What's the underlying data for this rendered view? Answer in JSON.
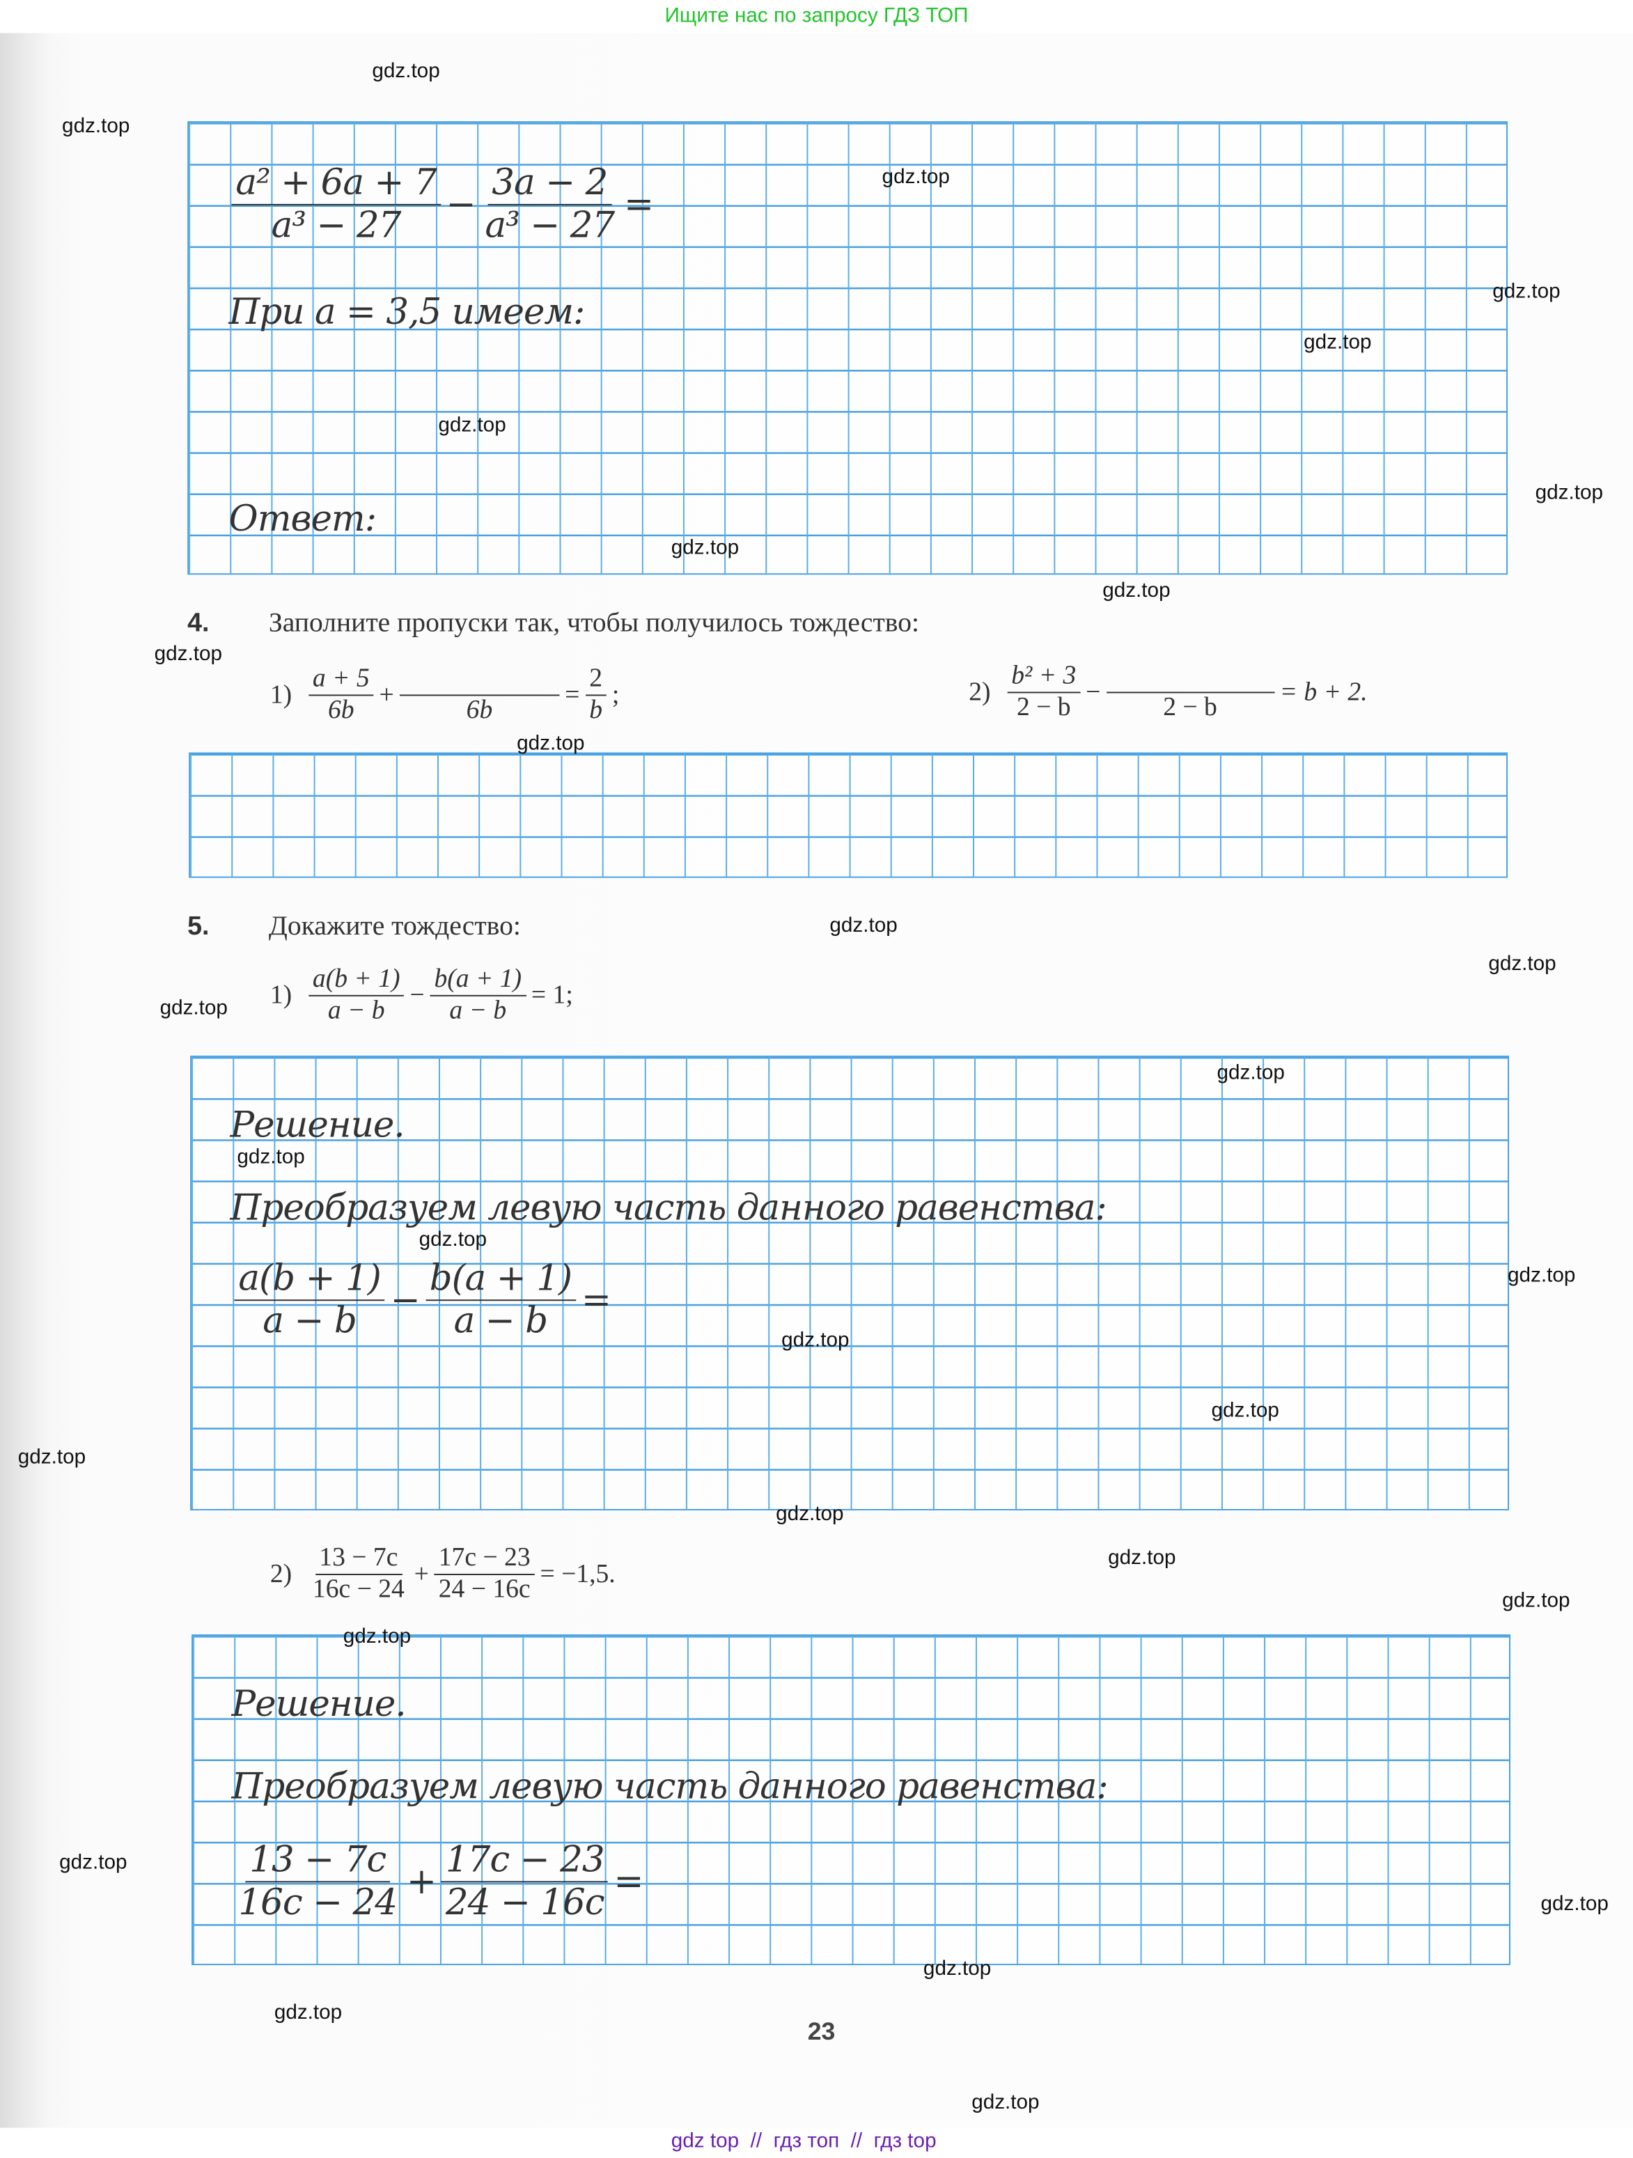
{
  "header_banner": "Ищите нас по запросу ГДЗ ТОП",
  "watermark": "gdz.top",
  "footer": "gdz top  //  гдз топ  //  гдз top",
  "colors": {
    "grid": "#49a2e0",
    "banner": "#22c42a",
    "footer": "#6b1fb0"
  },
  "task3_cont": {
    "f1": {
      "num": "a² + 6a + 7",
      "den": "a³ − 27"
    },
    "op": "−",
    "f2": {
      "num": "3a − 2",
      "den": "a³ − 27"
    },
    "eq": "=",
    "at_value": "При a = 3,5 имеем:",
    "answer_label": "Ответ:"
  },
  "task4": {
    "number": "4.",
    "title": "Заполните пропуски так, чтобы получилось тождество:",
    "item1": {
      "label": "1)",
      "f1": {
        "num": "a + 5",
        "den": "6b"
      },
      "op": "+",
      "f2": {
        "num": "",
        "den": "6b"
      },
      "eq": "=",
      "rhs": {
        "num": "2",
        "den": "b"
      },
      "end": ";"
    },
    "item2": {
      "label": "2)",
      "f1": {
        "num": "b² + 3",
        "den": "2 − b"
      },
      "op": "−",
      "f2": {
        "num": "",
        "den": "2 − b"
      },
      "rhs": "= b + 2."
    }
  },
  "task5": {
    "number": "5.",
    "title": "Докажите тождество:",
    "item1": {
      "label": "1)",
      "f1": {
        "num": "a(b + 1)",
        "den": "a − b"
      },
      "op": "−",
      "f2": {
        "num": "b(a + 1)",
        "den": "a − b"
      },
      "rhs": "= 1;"
    },
    "solution1": {
      "title": "Решение.",
      "line": "Преобразуем левую часть данного равенства:",
      "f1": {
        "num": "a(b + 1)",
        "den": "a − b"
      },
      "op": "−",
      "f2": {
        "num": "b(a + 1)",
        "den": "a − b"
      },
      "eq": "="
    },
    "item2": {
      "label": "2)",
      "f1": {
        "num": "13 − 7c",
        "den": "16c − 24"
      },
      "op": "+",
      "f2": {
        "num": "17c − 23",
        "den": "24 − 16c"
      },
      "rhs": "= −1,5."
    },
    "solution2": {
      "title": "Решение.",
      "line": "Преобразуем левую часть данного равенства:",
      "f1": {
        "num": "13 − 7c",
        "den": "16c − 24"
      },
      "op": "+",
      "f2": {
        "num": "17c − 23",
        "den": "24 − 16c"
      },
      "eq": "="
    }
  },
  "page_number": "23"
}
